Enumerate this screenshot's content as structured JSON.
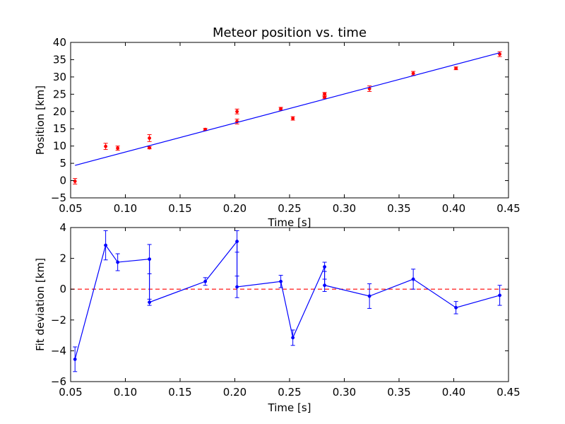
{
  "chart_data": [
    {
      "type": "scatter",
      "title": "Meteor position vs. time",
      "xlabel": "Time [s]",
      "ylabel": "Position [km]",
      "xlim": [
        0.05,
        0.45
      ],
      "ylim": [
        -5,
        40
      ],
      "xticks": [
        "0.05",
        "0.10",
        "0.15",
        "0.20",
        "0.25",
        "0.30",
        "0.35",
        "0.40",
        "0.45"
      ],
      "yticks": [
        "−5",
        "0",
        "5",
        "10",
        "15",
        "20",
        "25",
        "30",
        "35",
        "40"
      ],
      "grid": false,
      "series": [
        {
          "kind": "points-with-errorbars",
          "color": "#ff0000",
          "points": [
            {
              "x": 0.054,
              "y": -0.2,
              "err": 0.8
            },
            {
              "x": 0.082,
              "y": 9.9,
              "err": 0.9
            },
            {
              "x": 0.093,
              "y": 9.4,
              "err": 0.6
            },
            {
              "x": 0.122,
              "y": 12.3,
              "err": 1.0
            },
            {
              "x": 0.122,
              "y": 9.5,
              "err": 0.3
            },
            {
              "x": 0.173,
              "y": 14.8,
              "err": 0.3
            },
            {
              "x": 0.202,
              "y": 20.0,
              "err": 0.7
            },
            {
              "x": 0.202,
              "y": 17.1,
              "err": 0.7
            },
            {
              "x": 0.242,
              "y": 20.8,
              "err": 0.4
            },
            {
              "x": 0.253,
              "y": 18.0,
              "err": 0.5
            },
            {
              "x": 0.282,
              "y": 25.1,
              "err": 0.4
            },
            {
              "x": 0.282,
              "y": 24.1,
              "err": 0.3
            },
            {
              "x": 0.323,
              "y": 26.6,
              "err": 0.8
            },
            {
              "x": 0.363,
              "y": 31.0,
              "err": 0.6
            },
            {
              "x": 0.402,
              "y": 32.5,
              "err": 0.4
            },
            {
              "x": 0.442,
              "y": 36.6,
              "err": 0.7
            }
          ]
        },
        {
          "kind": "line",
          "color": "#0000ff",
          "x": [
            0.054,
            0.442
          ],
          "y": [
            4.4,
            37.0
          ]
        }
      ]
    },
    {
      "type": "line",
      "title": "",
      "xlabel": "Time [s]",
      "ylabel": "Fit deviation [km]",
      "xlim": [
        0.05,
        0.45
      ],
      "ylim": [
        -6,
        4
      ],
      "xticks": [
        "0.05",
        "0.10",
        "0.15",
        "0.20",
        "0.25",
        "0.30",
        "0.35",
        "0.40",
        "0.45"
      ],
      "yticks": [
        "−6",
        "−4",
        "−2",
        "0",
        "2",
        "4"
      ],
      "grid": false,
      "reference_line": {
        "y": 0,
        "color": "#ff0000",
        "style": "dashed"
      },
      "series": [
        {
          "kind": "line-with-errorbars",
          "color": "#0000ff",
          "points": [
            {
              "x": 0.054,
              "y": -4.55,
              "err": 0.8
            },
            {
              "x": 0.082,
              "y": 2.85,
              "err": 0.95
            },
            {
              "x": 0.093,
              "y": 1.75,
              "err": 0.55
            },
            {
              "x": 0.122,
              "y": 1.95,
              "err": 0.95
            },
            {
              "x": 0.122,
              "y": -0.85,
              "err": 0.2
            },
            {
              "x": 0.173,
              "y": 0.5,
              "err": 0.25
            },
            {
              "x": 0.202,
              "y": 3.1,
              "err": 0.7
            },
            {
              "x": 0.202,
              "y": 0.15,
              "err": 0.7
            },
            {
              "x": 0.242,
              "y": 0.5,
              "err": 0.4
            },
            {
              "x": 0.253,
              "y": -3.15,
              "err": 0.5
            },
            {
              "x": 0.282,
              "y": 1.45,
              "err": 0.3
            },
            {
              "x": 0.282,
              "y": 0.25,
              "err": 0.4
            },
            {
              "x": 0.323,
              "y": -0.45,
              "err": 0.8
            },
            {
              "x": 0.363,
              "y": 0.65,
              "err": 0.65
            },
            {
              "x": 0.402,
              "y": -1.2,
              "err": 0.4
            },
            {
              "x": 0.442,
              "y": -0.4,
              "err": 0.65
            }
          ]
        }
      ]
    }
  ]
}
